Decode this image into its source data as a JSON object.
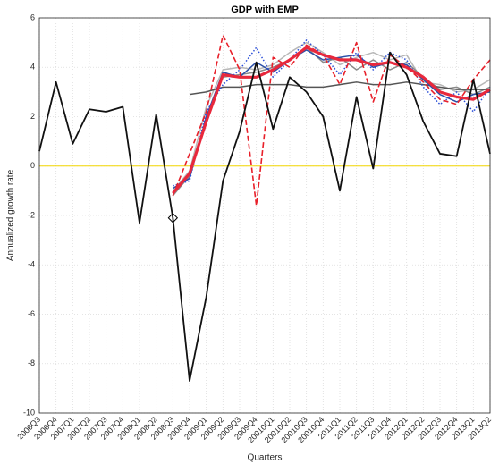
{
  "chart_data": {
    "type": "line",
    "title": "GDP with EMP",
    "x_label": "Quarters",
    "y_label": "Annualized growth rate",
    "categories": [
      "2006Q3",
      "2006Q4",
      "2007Q1",
      "2007Q2",
      "2007Q3",
      "2007Q4",
      "2008Q1",
      "2008Q2",
      "2008Q3",
      "2008Q4",
      "2009Q1",
      "2009Q2",
      "2009Q3",
      "2009Q4",
      "20010Q1",
      "20010Q2",
      "20010Q3",
      "20010Q4",
      "2011Q1",
      "2011Q2",
      "2011Q3",
      "2011Q4",
      "2012Q1",
      "2012Q2",
      "2012Q3",
      "2012Q4",
      "2013Q1",
      "2013Q2"
    ],
    "ylim": [
      -10,
      6
    ],
    "yticks": [
      -10,
      -8,
      -6,
      -4,
      -2,
      0,
      2,
      4,
      6
    ],
    "grid": true,
    "zero_line_color": "#f2d600",
    "series": [
      {
        "color": "#b8b8b8",
        "width": 1.5,
        "dash": "solid",
        "values": [
          null,
          null,
          null,
          null,
          null,
          null,
          null,
          null,
          -1.0,
          -0.2,
          2.4,
          3.9,
          4.0,
          3.9,
          4.1,
          4.6,
          5.0,
          4.6,
          4.1,
          4.4,
          4.6,
          4.3,
          4.5,
          3.4,
          3.3,
          3.0,
          3.1,
          3.5
        ]
      },
      {
        "color": "#8a8a8a",
        "width": 1.5,
        "dash": "solid",
        "values": [
          null,
          null,
          null,
          null,
          null,
          null,
          null,
          null,
          -1.2,
          -0.4,
          1.9,
          3.6,
          3.7,
          3.8,
          4.0,
          4.3,
          4.8,
          4.2,
          4.4,
          3.9,
          4.3,
          3.9,
          4.2,
          3.6,
          3.1,
          3.2,
          2.9,
          3.2
        ]
      },
      {
        "color": "#555555",
        "width": 1.5,
        "dash": "solid",
        "values": [
          null,
          null,
          null,
          null,
          null,
          null,
          null,
          null,
          null,
          2.9,
          3.0,
          3.2,
          3.2,
          3.3,
          3.3,
          3.3,
          3.2,
          3.2,
          3.3,
          3.4,
          3.3,
          3.3,
          3.4,
          3.3,
          3.2,
          3.1,
          3.1,
          3.1
        ]
      },
      {
        "color": "#2b4fa8",
        "width": 1.5,
        "dash": "solid",
        "values": [
          null,
          null,
          null,
          null,
          null,
          null,
          null,
          null,
          -0.9,
          -0.5,
          2.0,
          3.8,
          3.6,
          4.2,
          3.8,
          4.3,
          4.7,
          4.3,
          4.4,
          4.5,
          4.0,
          4.2,
          4.1,
          3.5,
          2.9,
          2.6,
          2.9,
          3.0
        ]
      },
      {
        "color": "#2b4fd8",
        "width": 1.5,
        "dash": "dotted",
        "values": [
          null,
          null,
          null,
          null,
          null,
          null,
          null,
          null,
          -0.8,
          -0.6,
          2.2,
          3.3,
          3.9,
          4.8,
          3.6,
          4.3,
          5.1,
          4.5,
          3.7,
          4.6,
          3.9,
          4.6,
          4.3,
          3.2,
          2.5,
          3.0,
          2.2,
          3.2
        ]
      },
      {
        "color": "#e8202a",
        "width": 1.6,
        "dash": "dashed",
        "values": [
          null,
          null,
          null,
          null,
          null,
          null,
          null,
          null,
          -1.2,
          0.5,
          2.2,
          5.3,
          3.9,
          -1.6,
          4.4,
          4.0,
          4.9,
          4.5,
          3.3,
          5.0,
          2.6,
          4.5,
          4.0,
          3.4,
          2.7,
          2.5,
          3.5,
          4.3
        ]
      },
      {
        "color": "#e8283c",
        "width": 3.2,
        "dash": "solid",
        "values": [
          null,
          null,
          null,
          null,
          null,
          null,
          null,
          null,
          -1.1,
          -0.3,
          1.8,
          3.7,
          3.6,
          3.6,
          3.9,
          4.3,
          4.8,
          4.5,
          4.3,
          4.3,
          4.1,
          4.2,
          4.0,
          3.6,
          3.0,
          2.8,
          2.7,
          3.1
        ]
      },
      {
        "color": "#111111",
        "width": 1.8,
        "dash": "solid",
        "values": [
          0.6,
          3.4,
          0.9,
          2.3,
          2.2,
          2.4,
          -2.3,
          2.1,
          -2.1,
          -8.7,
          -5.3,
          -0.6,
          1.4,
          4.2,
          1.5,
          3.6,
          3.0,
          2.0,
          -1.0,
          2.8,
          -0.1,
          4.6,
          3.7,
          1.8,
          0.5,
          0.4,
          3.5,
          0.5
        ]
      },
      {
        "color": "#000000",
        "marker": "diamond",
        "values": [
          null,
          null,
          null,
          null,
          null,
          null,
          null,
          null,
          -2.1,
          null,
          null,
          null,
          null,
          null,
          null,
          null,
          null,
          null,
          null,
          null,
          null,
          null,
          null,
          null,
          null,
          null,
          null,
          null
        ]
      }
    ]
  }
}
